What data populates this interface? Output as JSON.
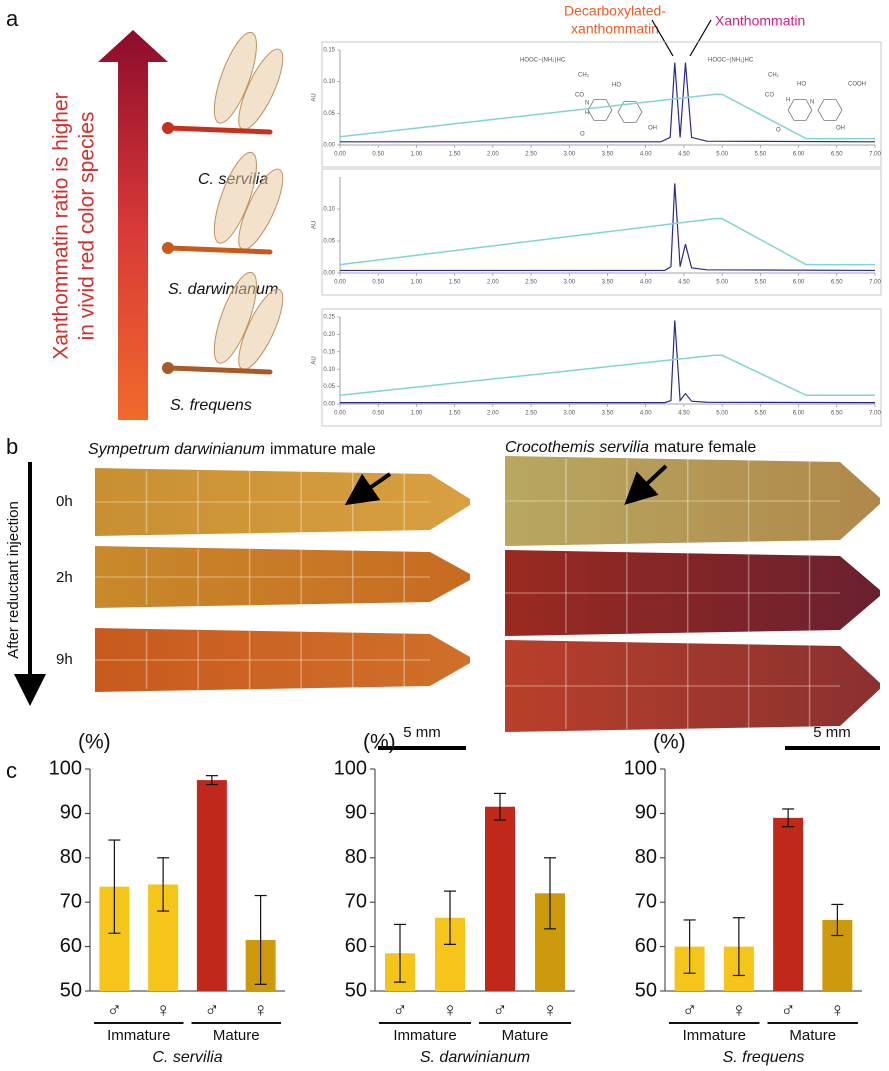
{
  "panel_labels": {
    "a": "a",
    "b": "b",
    "c": "c"
  },
  "panel_a": {
    "arrow_text": [
      "Xanthommatin ratio is higher",
      "in vivid red color species"
    ],
    "species": [
      "C. servilia",
      "S. darwinianum",
      "S. frequens"
    ],
    "peak_labels": {
      "decarboxylated": [
        "Decarboxylated-",
        "xanthommatin"
      ],
      "xanthommatin": "Xanthommatin"
    },
    "structure_left": [
      "HOOC−(NH₂)HC",
      "CH₂",
      "CO",
      "HO",
      "N",
      "H",
      "O",
      "OH"
    ],
    "structure_right": [
      "HOOC−(NH₂)HC",
      "CH₂",
      "CO",
      "HO",
      "H",
      "N",
      "COOH",
      "O",
      "OH"
    ]
  },
  "panel_b": {
    "left_title": {
      "italic": "Sympetrum darwinianum",
      "rest": "immature male"
    },
    "right_title": {
      "italic": "Crocothemis servilia",
      "rest": "mature female"
    },
    "times": [
      "0h",
      "2h",
      "9h"
    ],
    "arrow_text": "After reductant injection",
    "scale_bar": "5 mm"
  },
  "chart_data": [
    {
      "type": "line",
      "ylabel": "AU",
      "xlim": [
        0,
        7
      ],
      "ylim": [
        0,
        0.15
      ],
      "xticks": [
        {
          "value": 0,
          "label": "0.00"
        },
        {
          "value": 0.5,
          "label": "0.50"
        },
        {
          "value": 1,
          "label": "1.00"
        },
        {
          "value": 1.5,
          "label": "1.50"
        },
        {
          "value": 2,
          "label": "2.00"
        },
        {
          "value": 2.5,
          "label": "2.50"
        },
        {
          "value": 3,
          "label": "3.00"
        },
        {
          "value": 3.5,
          "label": "3.50"
        },
        {
          "value": 4,
          "label": "4.00"
        },
        {
          "value": 4.5,
          "label": "4.50"
        },
        {
          "value": 5,
          "label": "5.00"
        },
        {
          "value": 5.5,
          "label": "5.50"
        },
        {
          "value": 6,
          "label": "6.00"
        },
        {
          "value": 6.5,
          "label": "6.50"
        },
        {
          "value": 7,
          "label": "7.00"
        }
      ],
      "yticks": [
        {
          "value": 0,
          "label": "0.00"
        },
        {
          "value": 0.05,
          "label": "0.05"
        },
        {
          "value": 0.1,
          "label": "0.10"
        },
        {
          "value": 0.15,
          "label": "0.15"
        }
      ],
      "series": [
        {
          "color": "#2b2a8c",
          "x": [
            0,
            4.2,
            4.32,
            4.38,
            4.45,
            4.52,
            4.6,
            4.8,
            7
          ],
          "values": [
            0.005,
            0.005,
            0.012,
            0.13,
            0.012,
            0.13,
            0.012,
            0.006,
            0.005
          ]
        },
        {
          "color": "#7fd6d0",
          "x": [
            0,
            4.9,
            5.0,
            6.1,
            7
          ],
          "values": [
            0.013,
            0.08,
            0.08,
            0.01,
            0.01
          ]
        }
      ]
    },
    {
      "type": "line",
      "ylabel": "AU",
      "xlim": [
        0,
        7
      ],
      "ylim": [
        0,
        0.15
      ],
      "xticks": [
        {
          "value": 0,
          "label": "0.00"
        },
        {
          "value": 0.5,
          "label": "0.50"
        },
        {
          "value": 1,
          "label": "1.00"
        },
        {
          "value": 1.5,
          "label": "1.50"
        },
        {
          "value": 2,
          "label": "2.00"
        },
        {
          "value": 2.5,
          "label": "2.50"
        },
        {
          "value": 3,
          "label": "3.00"
        },
        {
          "value": 3.5,
          "label": "3.50"
        },
        {
          "value": 4,
          "label": "4.00"
        },
        {
          "value": 4.5,
          "label": "4.50"
        },
        {
          "value": 5,
          "label": "5.00"
        },
        {
          "value": 5.5,
          "label": "5.50"
        },
        {
          "value": 6,
          "label": "6.00"
        },
        {
          "value": 6.5,
          "label": "6.50"
        },
        {
          "value": 7,
          "label": "7.00"
        }
      ],
      "yticks": [
        {
          "value": 0,
          "label": "0.00"
        },
        {
          "value": 0.05,
          "label": "0.05"
        },
        {
          "value": 0.1,
          "label": "0.10"
        }
      ],
      "series": [
        {
          "color": "#2b2a8c",
          "x": [
            0,
            4.25,
            4.33,
            4.38,
            4.45,
            4.52,
            4.6,
            4.8,
            7
          ],
          "values": [
            0.004,
            0.004,
            0.01,
            0.14,
            0.01,
            0.045,
            0.008,
            0.005,
            0.004
          ]
        },
        {
          "color": "#7fd6d0",
          "x": [
            0,
            4.9,
            5.0,
            6.1,
            7
          ],
          "values": [
            0.013,
            0.085,
            0.085,
            0.013,
            0.013
          ]
        }
      ]
    },
    {
      "type": "line",
      "ylabel": "AU",
      "xlim": [
        0,
        7
      ],
      "ylim": [
        0,
        0.25
      ],
      "xticks": [
        {
          "value": 0,
          "label": "0.00"
        },
        {
          "value": 0.5,
          "label": "0.50"
        },
        {
          "value": 1,
          "label": "1.00"
        },
        {
          "value": 1.5,
          "label": "1.50"
        },
        {
          "value": 2,
          "label": "2.00"
        },
        {
          "value": 2.5,
          "label": "2.50"
        },
        {
          "value": 3,
          "label": "3.00"
        },
        {
          "value": 3.5,
          "label": "3.50"
        },
        {
          "value": 4,
          "label": "4.00"
        },
        {
          "value": 4.5,
          "label": "4.50"
        },
        {
          "value": 5,
          "label": "5.00"
        },
        {
          "value": 5.5,
          "label": "5.50"
        },
        {
          "value": 6,
          "label": "6.00"
        },
        {
          "value": 6.5,
          "label": "6.50"
        },
        {
          "value": 7,
          "label": "7.00"
        }
      ],
      "yticks": [
        {
          "value": 0,
          "label": "0.00"
        },
        {
          "value": 0.05,
          "label": "0.05"
        },
        {
          "value": 0.1,
          "label": "0.10"
        },
        {
          "value": 0.15,
          "label": "0.15"
        },
        {
          "value": 0.2,
          "label": "0.20"
        },
        {
          "value": 0.25,
          "label": "0.25"
        }
      ],
      "series": [
        {
          "color": "#2b2a8c",
          "x": [
            0,
            4.25,
            4.33,
            4.38,
            4.45,
            4.52,
            4.6,
            4.8,
            7
          ],
          "values": [
            0.004,
            0.004,
            0.01,
            0.24,
            0.01,
            0.03,
            0.008,
            0.005,
            0.004
          ]
        },
        {
          "color": "#7fd6d0",
          "x": [
            0,
            4.9,
            5.0,
            6.1,
            7
          ],
          "values": [
            0.025,
            0.14,
            0.14,
            0.025,
            0.025
          ]
        }
      ]
    },
    {
      "type": "bar",
      "title": "C. servilia",
      "y_unit": "(%)",
      "categories": [
        "♂",
        "♀",
        "♂",
        "♀"
      ],
      "groups": [
        "Immature",
        "Mature"
      ],
      "values": [
        73.5,
        74,
        97.5,
        61.5
      ],
      "errors": [
        10.5,
        6,
        1,
        10
      ],
      "colors": [
        "#f5c51a",
        "#f5c51a",
        "#c1281c",
        "#cc9a0c"
      ],
      "ylim": [
        50,
        100
      ],
      "yticks": [
        50,
        60,
        70,
        80,
        90,
        100
      ]
    },
    {
      "type": "bar",
      "title": "S. darwinianum",
      "y_unit": "(%)",
      "categories": [
        "♂",
        "♀",
        "♂",
        "♀"
      ],
      "groups": [
        "Immature",
        "Mature"
      ],
      "values": [
        58.5,
        66.5,
        91.5,
        72
      ],
      "errors": [
        6.5,
        6,
        3,
        8
      ],
      "colors": [
        "#f5c51a",
        "#f5c51a",
        "#c1281c",
        "#cc9a0c"
      ],
      "ylim": [
        50,
        100
      ],
      "yticks": [
        50,
        60,
        70,
        80,
        90,
        100
      ]
    },
    {
      "type": "bar",
      "title": "S. frequens",
      "y_unit": "(%)",
      "categories": [
        "♂",
        "♀",
        "♂",
        "♀"
      ],
      "groups": [
        "Immature",
        "Mature"
      ],
      "values": [
        60,
        60,
        89,
        66
      ],
      "errors": [
        6,
        6.5,
        2,
        3.5
      ],
      "colors": [
        "#f5c51a",
        "#f5c51a",
        "#c1281c",
        "#cc9a0c"
      ],
      "ylim": [
        50,
        100
      ],
      "yticks": [
        50,
        60,
        70,
        80,
        90,
        100
      ]
    }
  ]
}
